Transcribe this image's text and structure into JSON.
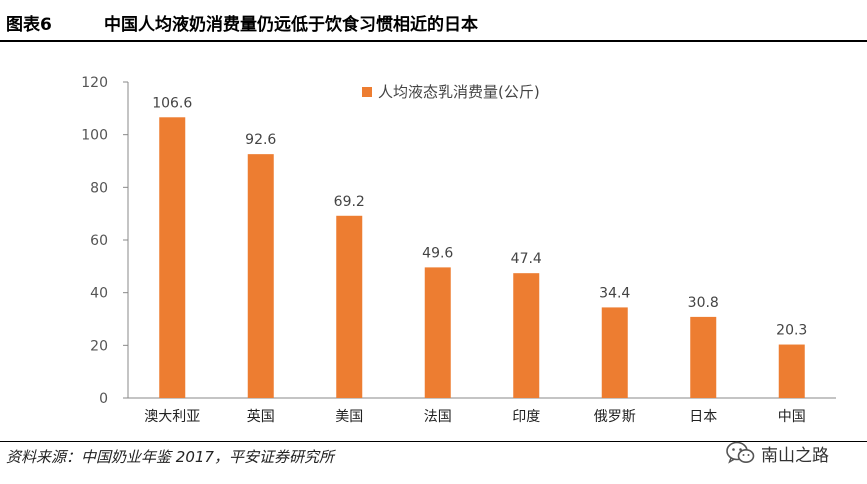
{
  "header": {
    "figure_label": "图表6",
    "title": "中国人均液奶消费量仍远低于饮食习惯相近的日本"
  },
  "chart_data": {
    "type": "bar",
    "categories": [
      "澳大利亚",
      "英国",
      "美国",
      "法国",
      "印度",
      "俄罗斯",
      "日本",
      "中国"
    ],
    "series": [
      {
        "name": "人均液态乳消费量(公斤)",
        "values": [
          106.6,
          92.6,
          69.2,
          49.6,
          47.4,
          34.4,
          30.8,
          20.3
        ],
        "color": "#ED7D31"
      }
    ],
    "data_labels": [
      "106.6",
      "92.6",
      "69.2",
      "49.6",
      "47.4",
      "34.4",
      "30.8",
      "20.3"
    ],
    "yticks": [
      "0",
      "20",
      "40",
      "60",
      "80",
      "100",
      "120"
    ],
    "ylim": [
      0,
      120
    ],
    "xlabel": "",
    "ylabel": "",
    "grid": false,
    "legend_position": "top-center"
  },
  "footer": {
    "source": "资料来源：中国奶业年鉴 2017，平安证券研究所",
    "watermark_text": "南山之路",
    "watermark_icon": "wechat-icon"
  }
}
